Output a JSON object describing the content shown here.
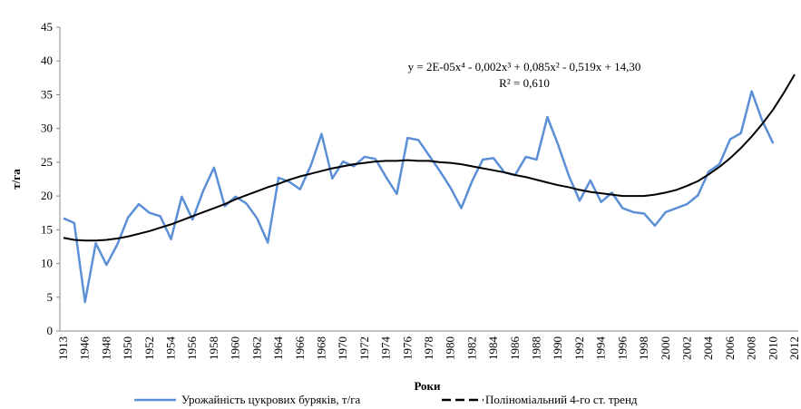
{
  "chart_data": {
    "type": "line",
    "y_label": "т/га",
    "x_label": "Роки",
    "annotation": "y = 2E-05x⁴ - 0,002x³ + 0,085x² - 0,519x + 14,30",
    "annotation2": "R² = 0,610",
    "categories": [
      "1913",
      null,
      "1946",
      null,
      "1948",
      null,
      "1950",
      null,
      "1952",
      null,
      "1954",
      null,
      "1956",
      null,
      "1958",
      null,
      "1960",
      null,
      "1962",
      null,
      "1964",
      null,
      "1966",
      null,
      "1968",
      null,
      "1970",
      null,
      "1972",
      null,
      "1974",
      null,
      "1976",
      null,
      "1978",
      null,
      "1980",
      null,
      "1982",
      null,
      "1984",
      null,
      "1986",
      null,
      "1988",
      null,
      "1990",
      null,
      "1992",
      null,
      "1994",
      null,
      "1996",
      null,
      "1998",
      null,
      "2000",
      null,
      "2002",
      null,
      "2004",
      null,
      "2006",
      null,
      "2008",
      null,
      "2010",
      null,
      "2012"
    ],
    "series": [
      {
        "name": "Урожайність цукрових буряків, т/га",
        "color": "#5b8fd6",
        "values": [
          16.7,
          16.0,
          4.3,
          13.0,
          9.8,
          12.8,
          16.8,
          18.8,
          17.5,
          17.0,
          13.6,
          19.9,
          16.5,
          20.8,
          24.2,
          18.5,
          19.9,
          18.9,
          16.7,
          13.1,
          22.7,
          22.1,
          21.0,
          24.5,
          29.2,
          22.6,
          25.1,
          24.4,
          25.8,
          25.5,
          22.8,
          20.3,
          28.6,
          28.3,
          26.0,
          23.7,
          21.2,
          18.2,
          22.2,
          25.4,
          25.6,
          23.5,
          23.1,
          25.8,
          25.4,
          31.7,
          27.6,
          23.0,
          19.3,
          22.3,
          19.1,
          20.5,
          18.2,
          17.6,
          17.4,
          15.6,
          17.6,
          18.2,
          18.8,
          20.1,
          23.6,
          24.7,
          28.4,
          29.3,
          35.5,
          31.1,
          27.8,
          null,
          null
        ]
      },
      {
        "name": "Поліноміальний 4-го ст. тренд",
        "color": "#000000",
        "values": [
          13.8,
          13.5,
          13.4,
          13.4,
          13.5,
          13.7,
          14.0,
          14.4,
          14.8,
          15.3,
          15.8,
          16.4,
          17.0,
          17.6,
          18.2,
          18.8,
          19.5,
          20.1,
          20.7,
          21.3,
          21.8,
          22.4,
          22.9,
          23.3,
          23.7,
          24.1,
          24.4,
          24.7,
          24.9,
          25.1,
          25.2,
          25.2,
          25.3,
          25.2,
          25.2,
          25.0,
          24.9,
          24.7,
          24.4,
          24.1,
          23.8,
          23.5,
          23.1,
          22.8,
          22.4,
          22.0,
          21.6,
          21.3,
          20.9,
          20.6,
          20.4,
          20.2,
          20.0,
          20.0,
          20.0,
          20.2,
          20.5,
          20.9,
          21.5,
          22.2,
          23.2,
          24.3,
          25.6,
          27.1,
          28.8,
          30.7,
          32.8,
          35.3,
          38.0
        ]
      }
    ],
    "ylim": [
      0,
      45
    ],
    "yticks": [
      0,
      5,
      10,
      15,
      20,
      25,
      30,
      35,
      40,
      45
    ],
    "grid": false
  }
}
